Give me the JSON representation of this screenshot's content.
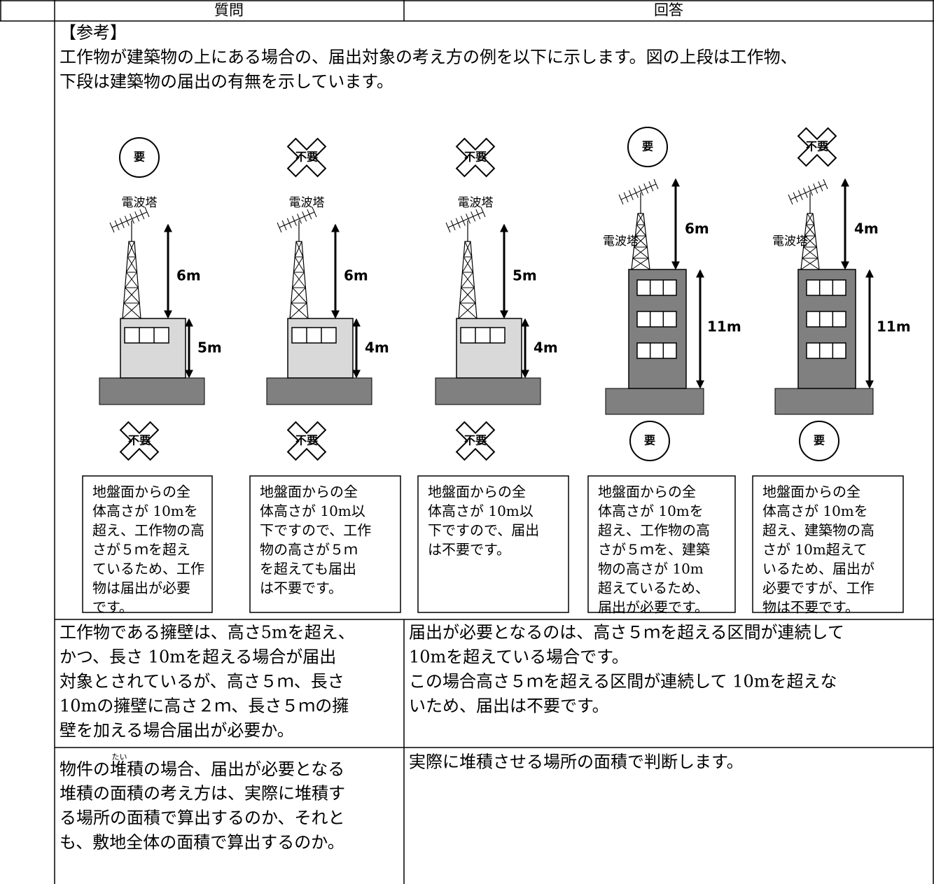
{
  "header": {
    "question": "質問",
    "answer": "回答"
  },
  "rows": [
    {
      "reference": {
        "heading": "【参考】",
        "lines": [
          "工作物が建築物の上にある場合の、届出対象の考え方の例を以下に示します。図の上段は工作物、",
          "下段は建築物の届出の有無を示しています。"
        ]
      },
      "panels": [
        {
          "top_badge": {
            "text": "要",
            "shape": "circle"
          },
          "tower_label": "電波塔",
          "structure_height": "6m",
          "building_height": "5m",
          "bottom_badge": {
            "text": "不要",
            "shape": "cross"
          },
          "caption": [
            "地盤面からの全",
            "体高さが 10mを",
            "超え、工作物の高",
            "さが５ｍを超え",
            "ているため、工作",
            "物は届出が必要",
            "です。"
          ]
        },
        {
          "top_badge": {
            "text": "不要",
            "shape": "cross"
          },
          "tower_label": "電波塔",
          "structure_height": "6m",
          "building_height": "4m",
          "bottom_badge": {
            "text": "不要",
            "shape": "cross"
          },
          "caption": [
            "地盤面からの全",
            "体高さが 10m以",
            "下ですので、工作",
            "物の高さが５ｍ",
            "を超えても届出",
            "は不要です。"
          ]
        },
        {
          "top_badge": {
            "text": "不要",
            "shape": "cross"
          },
          "tower_label": "電波塔",
          "structure_height": "5m",
          "building_height": "4m",
          "bottom_badge": {
            "text": "不要",
            "shape": "cross"
          },
          "caption": [
            "地盤面からの全",
            "体高さが 10m以",
            "下ですので、届出",
            "は不要です。"
          ]
        },
        {
          "top_badge": {
            "text": "要",
            "shape": "circle"
          },
          "tower_label": "電波塔",
          "structure_height": "6m",
          "building_height": "11m",
          "bottom_badge": {
            "text": "要",
            "shape": "circle"
          },
          "caption": [
            "地盤面からの全",
            "体高さが 10mを",
            "超え、工作物の高",
            "さが５ｍを、建築",
            "物の高さが 10m",
            "超えているため、",
            "届出が必要です。"
          ]
        },
        {
          "top_badge": {
            "text": "不要",
            "shape": "cross"
          },
          "tower_label": "電波塔",
          "structure_height": "4m",
          "building_height": "11m",
          "bottom_badge": {
            "text": "要",
            "shape": "circle"
          },
          "caption": [
            "地盤面からの全",
            "体高さが 10mを",
            "超え、建築物の高",
            "さが 10m超えて",
            "いるため、届出が",
            "必要ですが、工作",
            "物は不要です。"
          ]
        }
      ]
    },
    {
      "question": [
        "工作物である擁壁は、高さ5mを超え、",
        "かつ、長さ 10mを超える場合が届出",
        "対象とされているが、高さ５ｍ、長さ",
        "10mの擁壁に高さ２ｍ、長さ５ｍの擁",
        "壁を加える場合届出が必要か。"
      ],
      "answer": [
        "届出が必要となるのは、高さ５ｍを超える区間が連続して",
        "10mを超えている場合です。",
        "この場合高さ５ｍを超える区間が連続して 10mを超えな",
        "いため、届出は不要です。"
      ]
    },
    {
      "question_first_line": {
        "before": "物件の",
        "ruby_base": "堆",
        "ruby_text": "たい",
        "after": "積の場合、届出が必要となる"
      },
      "question": [
        "堆積の面積の考え方は、実際に堆積す",
        "る場所の面積で算出するのか、それと",
        "も、敷地全体の面積で算出するのか。"
      ],
      "answer": [
        "実際に堆積させる場所の面積で判断します。"
      ]
    }
  ]
}
